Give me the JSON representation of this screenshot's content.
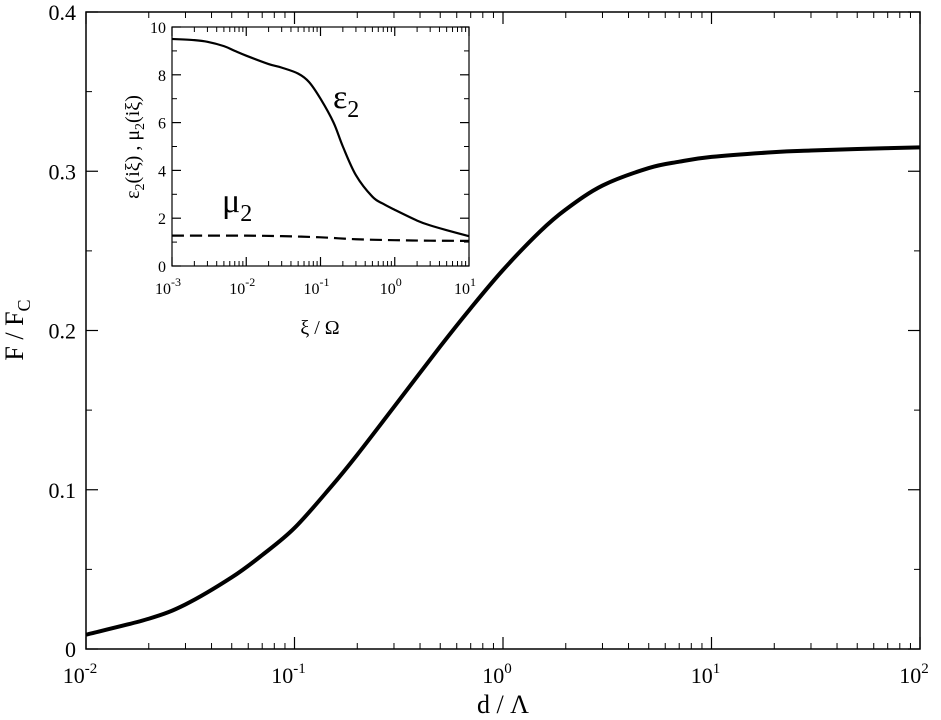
{
  "chart_data": [
    {
      "type": "line",
      "xlabel": "d / Λ",
      "ylabel": {
        "main": "F / F",
        "sub": "C"
      },
      "x_scale": "log",
      "xlim": [
        0.01,
        100
      ],
      "ylim": [
        0,
        0.4
      ],
      "x_ticks": [
        {
          "base": "10",
          "exp": "-2"
        },
        {
          "base": "10",
          "exp": "-1"
        },
        {
          "base": "10",
          "exp": "0"
        },
        {
          "base": "10",
          "exp": "1"
        },
        {
          "base": "10",
          "exp": "2"
        }
      ],
      "y_ticks": [
        "0",
        "0.1",
        "0.2",
        "0.3",
        "0.4"
      ],
      "series": [
        {
          "style": "solid-thick",
          "color": "#000000",
          "x": [
            0.01,
            0.02,
            0.03,
            0.05,
            0.07,
            0.1,
            0.15,
            0.2,
            0.3,
            0.5,
            0.7,
            1,
            1.5,
            2,
            3,
            5,
            7,
            10,
            20,
            30,
            50,
            100
          ],
          "y": [
            0.009,
            0.019,
            0.028,
            0.045,
            0.059,
            0.076,
            0.102,
            0.122,
            0.152,
            0.19,
            0.214,
            0.238,
            0.262,
            0.276,
            0.291,
            0.302,
            0.306,
            0.309,
            0.312,
            0.313,
            0.314,
            0.315
          ]
        }
      ]
    },
    {
      "type": "line",
      "inset": true,
      "xlabel": "ξ / Ω",
      "ylabel": {
        "p1": "ε",
        "s1": "2",
        "p2": "(iξ) , μ",
        "s2": "2",
        "p3": "(iξ)"
      },
      "x_scale": "log",
      "xlim": [
        0.001,
        10
      ],
      "ylim": [
        0,
        10
      ],
      "x_ticks": [
        {
          "base": "10",
          "exp": "-3"
        },
        {
          "base": "10",
          "exp": "-2"
        },
        {
          "base": "10",
          "exp": "-1"
        },
        {
          "base": "10",
          "exp": "0"
        },
        {
          "base": "10",
          "exp": "1"
        }
      ],
      "y_ticks": [
        "0",
        "2",
        "4",
        "6",
        "8",
        "10"
      ],
      "series": [
        {
          "name": {
            "main": "ε",
            "sub": "2"
          },
          "style": "solid",
          "color": "#000000",
          "x": [
            0.001,
            0.002,
            0.003,
            0.005,
            0.007,
            0.01,
            0.02,
            0.03,
            0.05,
            0.07,
            0.1,
            0.15,
            0.2,
            0.3,
            0.5,
            0.7,
            1,
            2,
            3,
            5,
            10
          ],
          "y": [
            9.5,
            9.45,
            9.38,
            9.2,
            9.0,
            8.8,
            8.45,
            8.3,
            8.05,
            7.7,
            7.0,
            6.0,
            5.0,
            3.8,
            2.9,
            2.6,
            2.35,
            1.9,
            1.7,
            1.5,
            1.25
          ]
        },
        {
          "name": {
            "main": "μ",
            "sub": "2"
          },
          "style": "dashed",
          "color": "#000000",
          "x": [
            0.001,
            0.003,
            0.01,
            0.03,
            0.1,
            0.3,
            1,
            3,
            10
          ],
          "y": [
            1.27,
            1.27,
            1.27,
            1.25,
            1.2,
            1.12,
            1.08,
            1.06,
            1.05
          ]
        }
      ]
    }
  ]
}
